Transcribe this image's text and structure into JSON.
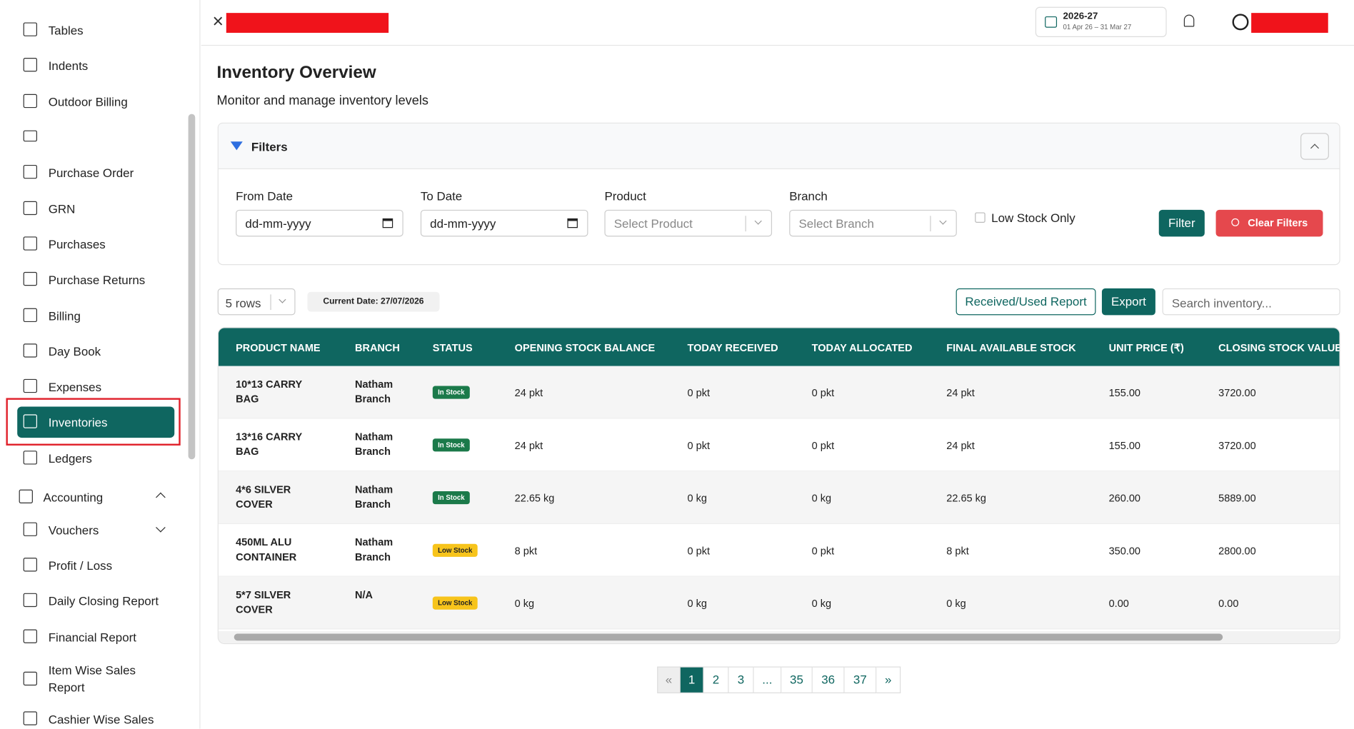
{
  "sidebar": {
    "items": [
      "Tables",
      "Indents",
      "Outdoor Billing",
      "Purchase Order",
      "GRN",
      "Purchases",
      "Purchase Returns",
      "Billing",
      "Day Book",
      "Expenses",
      "Inventories",
      "Ledgers",
      "Accounting",
      "Vouchers",
      "Profit / Loss",
      "Daily Closing Report",
      "Financial Report",
      "Item Wise Sales Report",
      "Cashier Wise Sales"
    ],
    "active": "Inventories"
  },
  "header": {
    "fiscal_year": "2026-27",
    "fiscal_range": "01 Apr 26 – 31 Mar 27"
  },
  "page": {
    "title": "Inventory Overview",
    "subtitle": "Monitor and manage inventory levels"
  },
  "filters": {
    "title": "Filters",
    "from_label": "From Date",
    "from_placeholder": "dd-mm-yyyy",
    "to_label": "To Date",
    "to_placeholder": "dd-mm-yyyy",
    "product_label": "Product",
    "product_placeholder": "Select Product",
    "branch_label": "Branch",
    "branch_placeholder": "Select Branch",
    "low_stock": "Low Stock Only",
    "filter_button": "Filter",
    "clear_button": "Clear Filters"
  },
  "toolbar": {
    "rows": "5 rows",
    "current_date": "Current Date: 27/07/2026",
    "report_button": "Received/Used Report",
    "export_button": "Export",
    "search_placeholder": "Search inventory..."
  },
  "table": {
    "columns": [
      "PRODUCT NAME",
      "BRANCH",
      "STATUS",
      "OPENING STOCK BALANCE",
      "TODAY RECEIVED",
      "TODAY ALLOCATED",
      "FINAL AVAILABLE STOCK",
      "UNIT PRICE (₹)",
      "CLOSING STOCK VALUE"
    ],
    "rows": [
      [
        "10*13 CARRY BAG",
        "Natham Branch",
        "In Stock",
        "24 pkt",
        "0 pkt",
        "0 pkt",
        "24 pkt",
        "155.00",
        "3720.00"
      ],
      [
        "13*16 CARRY BAG",
        "Natham Branch",
        "In Stock",
        "24 pkt",
        "0 pkt",
        "0 pkt",
        "24 pkt",
        "155.00",
        "3720.00"
      ],
      [
        "4*6 SILVER COVER",
        "Natham Branch",
        "In Stock",
        "22.65 kg",
        "0 kg",
        "0 kg",
        "22.65 kg",
        "260.00",
        "5889.00"
      ],
      [
        "450ML ALU CONTAINER",
        "Natham Branch",
        "Low Stock",
        "8 pkt",
        "0 pkt",
        "0 pkt",
        "8 pkt",
        "350.00",
        "2800.00"
      ],
      [
        "5*7 SILVER COVER",
        "N/A",
        "Low Stock",
        "0 kg",
        "0 kg",
        "0 kg",
        "0 kg",
        "0.00",
        "0.00"
      ]
    ]
  },
  "pagination": {
    "pages": [
      "«",
      "1",
      "2",
      "3",
      "...",
      "35",
      "36",
      "37",
      "»"
    ],
    "current": "1"
  }
}
